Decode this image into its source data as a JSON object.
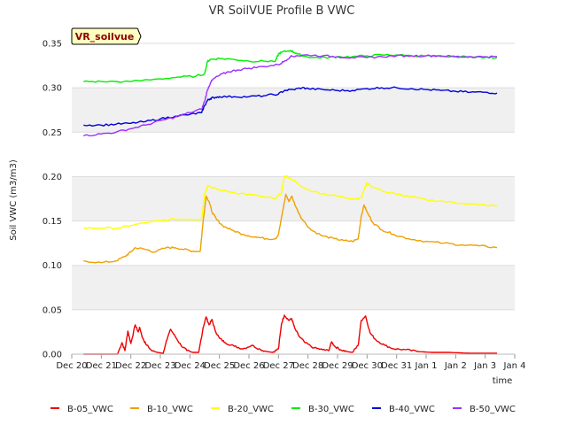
{
  "chart_data": {
    "type": "line",
    "title": "VR SoilVUE Profile B VWC",
    "xlabel": "time",
    "ylabel": "Soil VWC (m3/m3)",
    "badge": "VR_soilvue",
    "ylim": [
      0,
      0.35
    ],
    "xlim": [
      0,
      15
    ],
    "y_ticks": [
      "0.00",
      "0.05",
      "0.10",
      "0.15",
      "0.20",
      "0.25",
      "0.30",
      "0.35"
    ],
    "x_ticks": [
      "Dec 20",
      "Dec 21",
      "Dec 22",
      "Dec 23",
      "Dec 24",
      "Dec 25",
      "Dec 26",
      "Dec 27",
      "Dec 28",
      "Dec 29",
      "Dec 30",
      "Dec 31",
      "Jan 1",
      "Jan 2",
      "Jan 3",
      "Jan 4"
    ],
    "x_unit_note": "x values in days elapsed from Dec 20 00:00",
    "grid": true,
    "legend_position": "bottom",
    "series": [
      {
        "name": "B-05_VWC",
        "color": "#ee0000",
        "x": [
          0.4,
          1.55,
          1.7,
          1.8,
          1.9,
          2.0,
          2.15,
          2.25,
          2.3,
          2.4,
          2.5,
          2.7,
          2.9,
          3.1,
          3.2,
          3.35,
          3.5,
          3.7,
          3.9,
          4.1,
          4.3,
          4.45,
          4.55,
          4.65,
          4.75,
          4.85,
          5.0,
          5.2,
          5.5,
          5.8,
          6.1,
          6.4,
          6.6,
          6.8,
          7.0,
          7.1,
          7.2,
          7.35,
          7.45,
          7.55,
          7.7,
          7.9,
          8.2,
          8.5,
          8.7,
          8.8,
          8.9,
          9.1,
          9.3,
          9.5,
          9.7,
          9.8,
          9.95,
          10.1,
          10.3,
          10.6,
          10.9,
          11.3,
          11.7,
          12.2,
          12.8,
          13.5,
          14.0,
          14.4
        ],
        "y": [
          0.0,
          0.0,
          0.013,
          0.004,
          0.026,
          0.012,
          0.033,
          0.025,
          0.03,
          0.018,
          0.012,
          0.004,
          0.002,
          0.001,
          0.015,
          0.028,
          0.02,
          0.01,
          0.004,
          0.002,
          0.002,
          0.03,
          0.042,
          0.033,
          0.039,
          0.027,
          0.018,
          0.013,
          0.009,
          0.006,
          0.01,
          0.005,
          0.003,
          0.002,
          0.006,
          0.034,
          0.044,
          0.038,
          0.04,
          0.029,
          0.02,
          0.013,
          0.007,
          0.005,
          0.004,
          0.014,
          0.009,
          0.005,
          0.003,
          0.002,
          0.01,
          0.038,
          0.043,
          0.024,
          0.016,
          0.01,
          0.006,
          0.005,
          0.003,
          0.002,
          0.002,
          0.001,
          0.001,
          0.001
        ]
      },
      {
        "name": "B-10_VWC",
        "color": "#f0a000",
        "x": [
          0.4,
          1.0,
          1.5,
          1.8,
          2.0,
          2.15,
          2.5,
          2.8,
          3.2,
          3.5,
          3.8,
          4.1,
          4.35,
          4.45,
          4.55,
          4.65,
          4.75,
          4.9,
          5.1,
          5.4,
          5.8,
          6.2,
          6.6,
          6.9,
          7.0,
          7.15,
          7.25,
          7.35,
          7.45,
          7.6,
          7.8,
          8.1,
          8.5,
          8.9,
          9.2,
          9.5,
          9.7,
          9.8,
          9.9,
          10.0,
          10.2,
          10.5,
          10.9,
          11.4,
          12.0,
          12.6,
          13.2,
          13.8,
          14.4
        ],
        "y": [
          0.105,
          0.103,
          0.105,
          0.11,
          0.115,
          0.12,
          0.118,
          0.115,
          0.12,
          0.12,
          0.118,
          0.116,
          0.116,
          0.15,
          0.178,
          0.172,
          0.16,
          0.152,
          0.145,
          0.14,
          0.135,
          0.132,
          0.13,
          0.13,
          0.135,
          0.162,
          0.18,
          0.172,
          0.178,
          0.165,
          0.152,
          0.14,
          0.133,
          0.13,
          0.128,
          0.127,
          0.13,
          0.155,
          0.168,
          0.16,
          0.148,
          0.14,
          0.135,
          0.13,
          0.127,
          0.125,
          0.123,
          0.122,
          0.12
        ]
      },
      {
        "name": "B-20_VWC",
        "color": "#ffff00",
        "x": [
          0.4,
          1.0,
          1.6,
          2.0,
          2.5,
          3.0,
          3.5,
          4.0,
          4.4,
          4.5,
          4.6,
          4.8,
          5.0,
          5.5,
          6.0,
          6.5,
          6.9,
          7.1,
          7.2,
          7.3,
          7.5,
          7.8,
          8.2,
          8.6,
          9.0,
          9.5,
          9.8,
          9.9,
          10.0,
          10.2,
          10.6,
          11.0,
          11.5,
          12.0,
          12.6,
          13.2,
          13.8,
          14.4
        ],
        "y": [
          0.142,
          0.142,
          0.142,
          0.145,
          0.148,
          0.15,
          0.152,
          0.152,
          0.152,
          0.18,
          0.19,
          0.187,
          0.185,
          0.182,
          0.18,
          0.177,
          0.175,
          0.182,
          0.2,
          0.2,
          0.196,
          0.188,
          0.183,
          0.18,
          0.178,
          0.175,
          0.176,
          0.185,
          0.193,
          0.188,
          0.183,
          0.18,
          0.177,
          0.174,
          0.172,
          0.17,
          0.168,
          0.167
        ]
      },
      {
        "name": "B-30_VWC",
        "color": "#00ee00",
        "x": [
          0.4,
          1.0,
          2.0,
          3.0,
          3.6,
          4.2,
          4.5,
          4.6,
          4.7,
          5.0,
          5.5,
          6.0,
          6.5,
          6.9,
          7.0,
          7.1,
          7.4,
          7.6,
          7.8,
          8.2,
          8.6,
          9.0,
          9.5,
          10.0,
          10.5,
          11.0,
          11.5,
          12.0,
          12.5,
          13.0,
          13.5,
          14.0,
          14.4
        ],
        "y": [
          0.307,
          0.307,
          0.307,
          0.31,
          0.312,
          0.313,
          0.316,
          0.33,
          0.332,
          0.333,
          0.332,
          0.33,
          0.33,
          0.33,
          0.338,
          0.34,
          0.342,
          0.339,
          0.336,
          0.334,
          0.334,
          0.335,
          0.335,
          0.336,
          0.337,
          0.337,
          0.336,
          0.336,
          0.335,
          0.335,
          0.335,
          0.334,
          0.334
        ]
      },
      {
        "name": "B-40_VWC",
        "color": "#0000dd",
        "x": [
          0.4,
          1.0,
          1.5,
          2.0,
          2.5,
          3.0,
          3.5,
          4.0,
          4.4,
          4.5,
          4.6,
          4.7,
          4.8,
          5.0,
          5.5,
          6.0,
          6.5,
          7.0,
          7.2,
          7.5,
          7.8,
          8.0,
          8.5,
          9.0,
          9.5,
          10.0,
          10.5,
          11.0,
          11.5,
          12.0,
          12.5,
          13.0,
          13.5,
          14.0,
          14.4
        ],
        "y": [
          0.258,
          0.258,
          0.259,
          0.26,
          0.262,
          0.265,
          0.268,
          0.27,
          0.272,
          0.28,
          0.286,
          0.288,
          0.289,
          0.29,
          0.29,
          0.29,
          0.291,
          0.293,
          0.297,
          0.298,
          0.3,
          0.299,
          0.298,
          0.297,
          0.297,
          0.299,
          0.3,
          0.3,
          0.299,
          0.298,
          0.297,
          0.296,
          0.295,
          0.295,
          0.294
        ]
      },
      {
        "name": "B-50_VWC",
        "color": "#9b30ff",
        "x": [
          0.4,
          1.0,
          1.5,
          2.0,
          2.5,
          3.0,
          3.5,
          4.0,
          4.4,
          4.5,
          4.6,
          4.7,
          4.8,
          5.0,
          5.3,
          5.6,
          6.0,
          6.5,
          7.0,
          7.2,
          7.4,
          7.6,
          8.0,
          8.5,
          9.0,
          9.5,
          10.0,
          10.5,
          11.0,
          11.5,
          12.0,
          12.5,
          13.0,
          13.5,
          14.0,
          14.4
        ],
        "y": [
          0.246,
          0.248,
          0.25,
          0.254,
          0.258,
          0.263,
          0.267,
          0.272,
          0.276,
          0.285,
          0.298,
          0.306,
          0.31,
          0.314,
          0.318,
          0.32,
          0.322,
          0.324,
          0.326,
          0.33,
          0.335,
          0.336,
          0.337,
          0.336,
          0.335,
          0.334,
          0.334,
          0.335,
          0.336,
          0.336,
          0.336,
          0.336,
          0.335,
          0.335,
          0.335,
          0.335
        ]
      }
    ]
  }
}
